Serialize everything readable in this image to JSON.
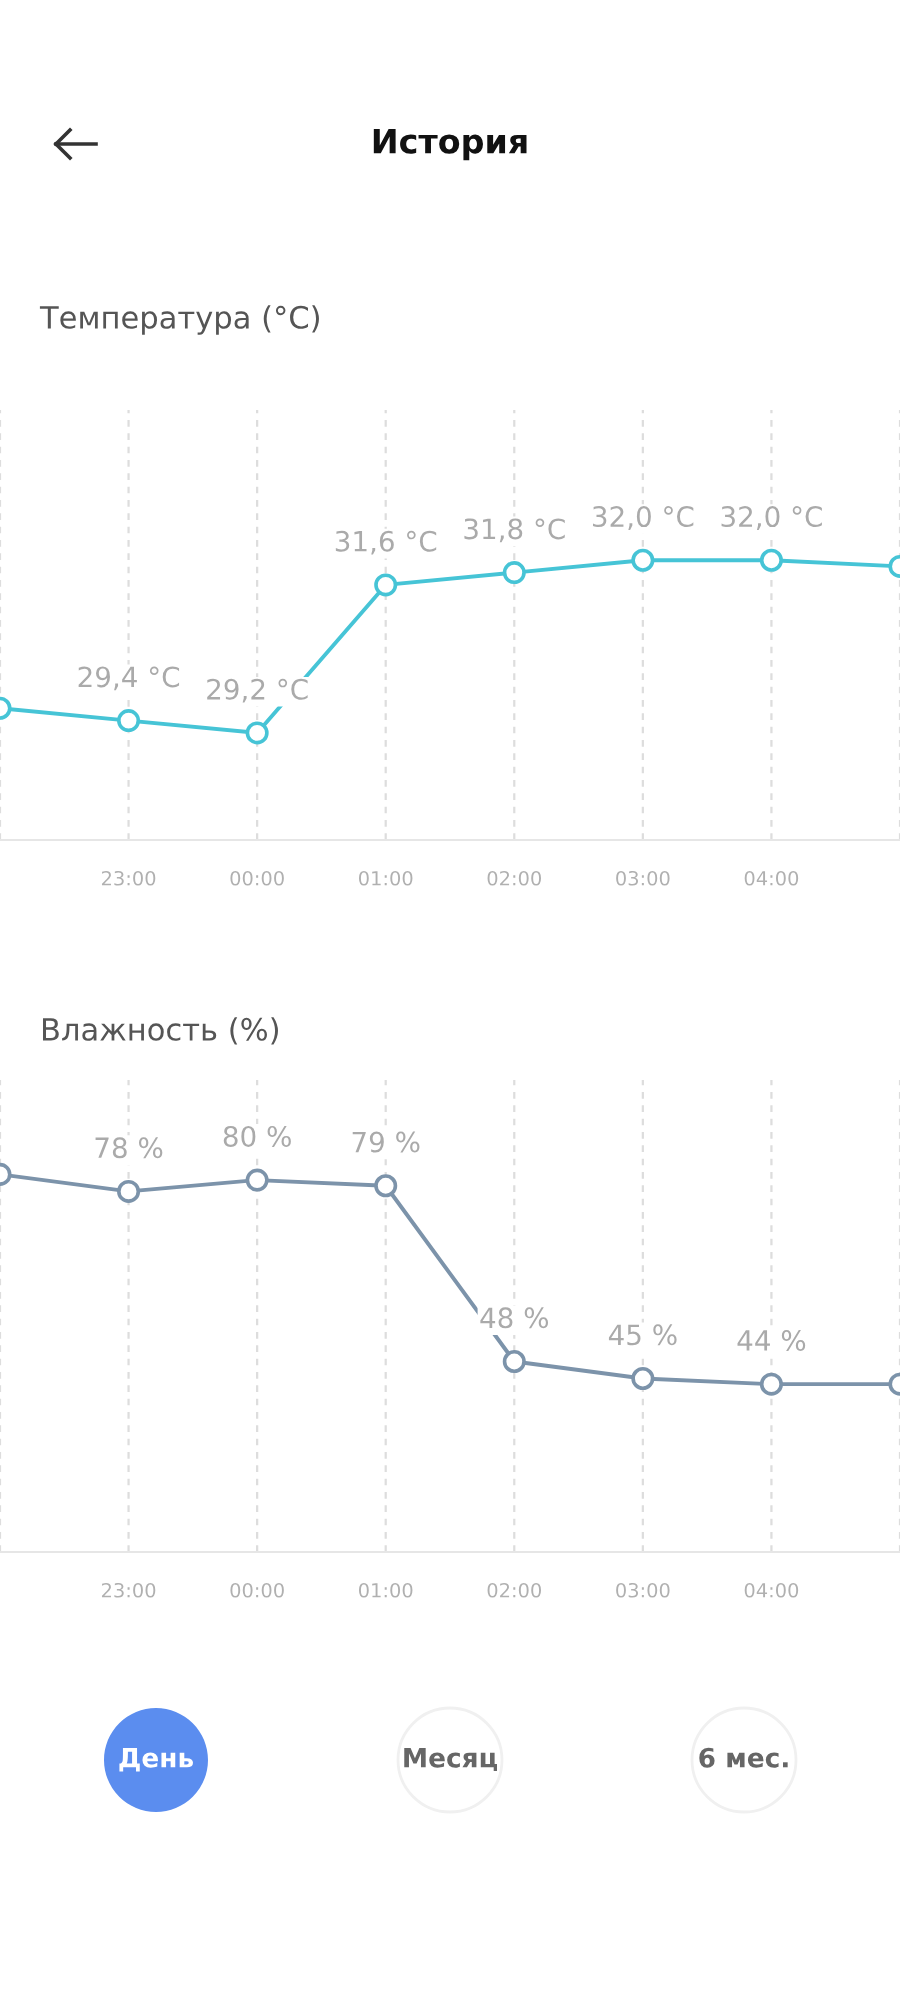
{
  "chart_data": [
    {
      "type": "line",
      "title": "Температура (°C)",
      "annotations": [
        "История"
      ],
      "categories": [
        null,
        "23:00",
        "00:00",
        "01:00",
        "02:00",
        "03:00",
        "04:00",
        null
      ],
      "series": [
        {
          "color": "#46c4d6",
          "values": [
            29.6,
            29.4,
            29.2,
            31.6,
            31.8,
            32.0,
            32.0,
            31.9
          ],
          "value_labels": [
            null,
            "29,4 °C",
            "29,2 °C",
            "31,6 °C",
            "31,8 °C",
            "32,0 °C",
            "32,0 °C",
            null
          ]
        }
      ],
      "marker": "circle",
      "line_style": "solid",
      "grid": "x",
      "legend": false
    },
    {
      "type": "line",
      "title": "Влажность (%)",
      "annotations": [
        "День",
        "Месяц",
        "6 мес."
      ],
      "categories": [
        null,
        "23:00",
        "00:00",
        "01:00",
        "02:00",
        "03:00",
        "04:00",
        null
      ],
      "series": [
        {
          "color": "#7c93aa",
          "values": [
            81,
            78,
            80,
            79,
            48,
            45,
            44,
            44
          ],
          "value_labels": [
            null,
            "78 %",
            "80 %",
            "79 %",
            "48 %",
            "45 %",
            "44 %",
            null
          ]
        }
      ],
      "marker": "circle",
      "line_style": "solid",
      "grid": "x",
      "legend": false
    }
  ]
}
